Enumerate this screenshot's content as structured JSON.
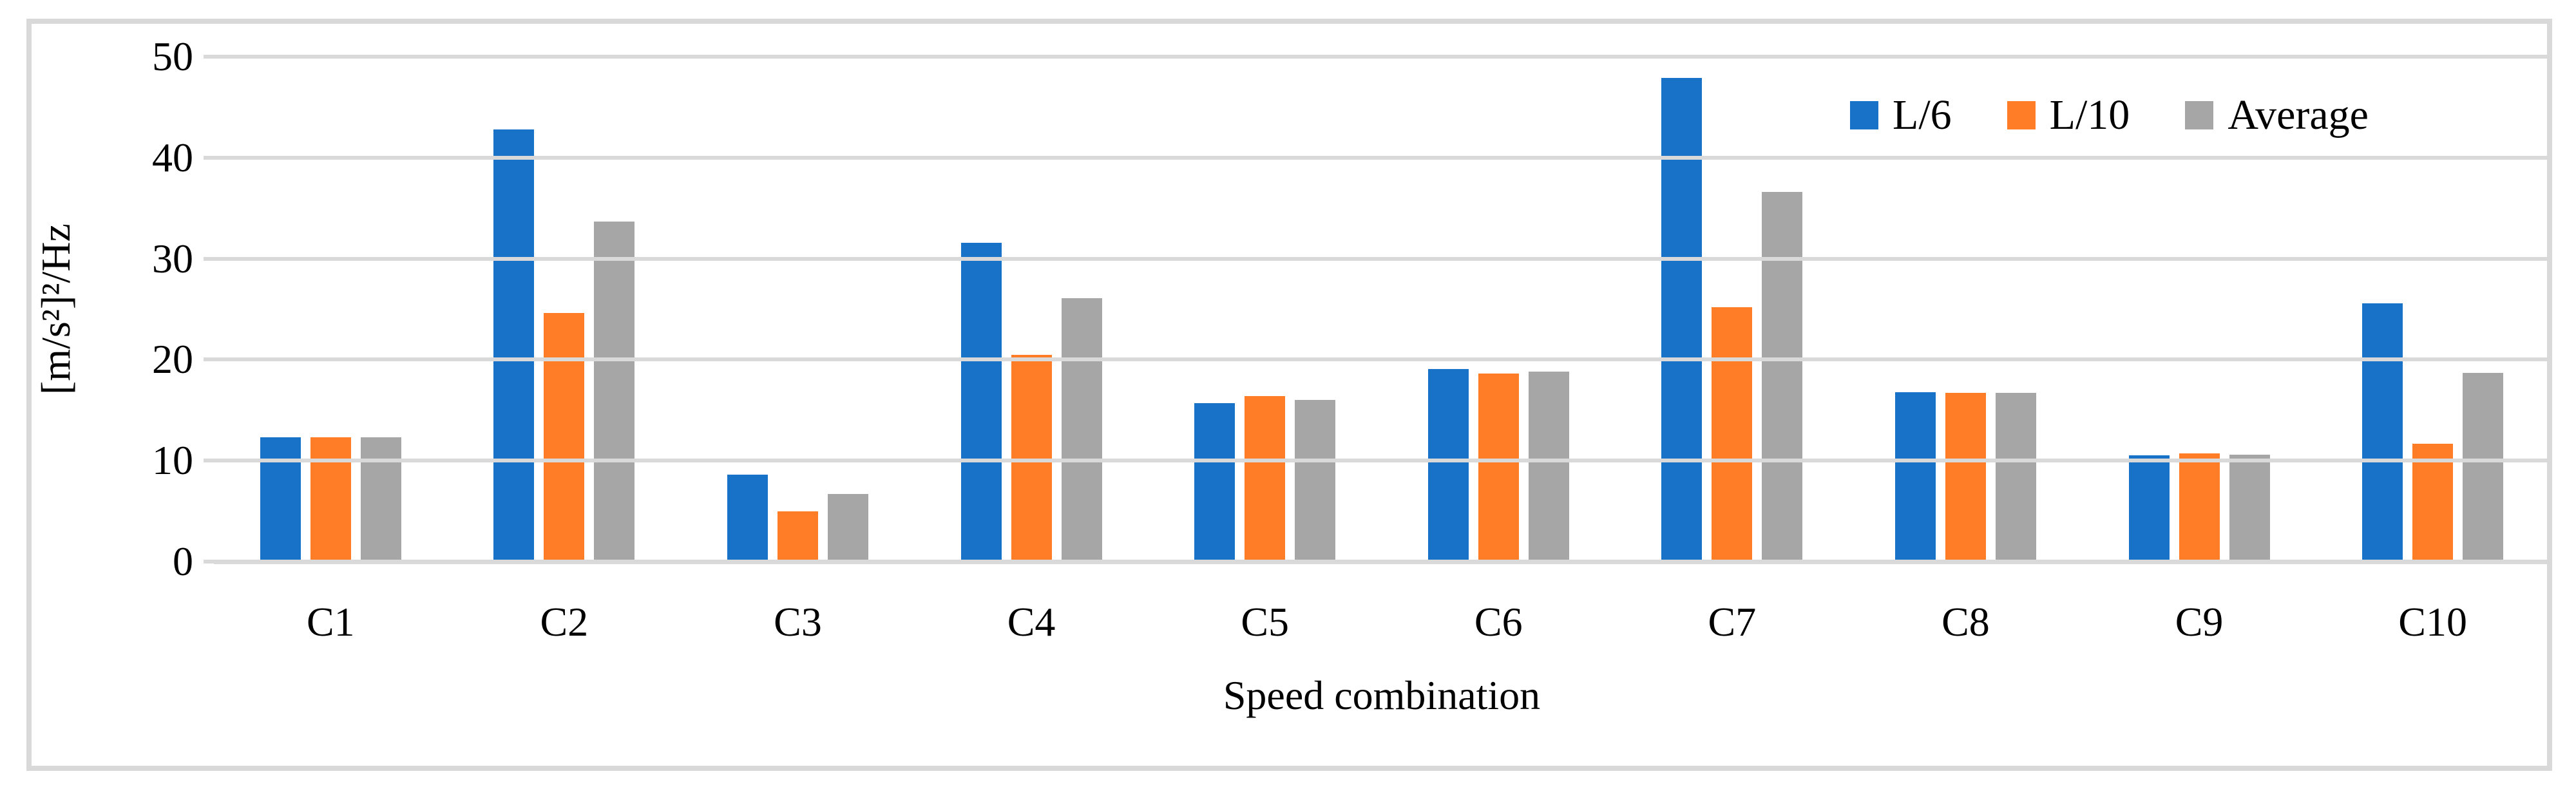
{
  "figure": {
    "xlabel": "Speed combination",
    "ylabel": "[m/s²]²/Hz"
  },
  "chart_data": {
    "type": "bar",
    "title": "",
    "categories": [
      "C1",
      "C2",
      "C3",
      "C4",
      "C5",
      "C6",
      "C7",
      "C8",
      "C9",
      "C10"
    ],
    "series": [
      {
        "name": "L/6",
        "color": "#1772C8",
        "values": [
          12.1,
          42.6,
          8.4,
          31.4,
          15.5,
          18.9,
          47.7,
          16.6,
          10.3,
          25.4
        ]
      },
      {
        "name": "L/10",
        "color": "#FF7D27",
        "values": [
          12.1,
          24.4,
          4.8,
          20.3,
          16.2,
          18.4,
          25.0,
          16.5,
          10.5,
          11.5
        ]
      },
      {
        "name": "Average",
        "color": "#A6A6A6",
        "values": [
          12.1,
          33.5,
          6.5,
          25.9,
          15.8,
          18.6,
          36.4,
          16.5,
          10.4,
          18.5
        ]
      }
    ],
    "xlabel": "Speed combination",
    "ylabel": "[m/s²]²/Hz",
    "ylim": [
      0,
      50
    ],
    "y_ticks": [
      0,
      10,
      20,
      30,
      40,
      50
    ],
    "grid": true,
    "gridline_color": "#D9D9D9",
    "frame_color": "#D9D9D9",
    "text_color": "#000000",
    "legend_position": "top-right"
  }
}
